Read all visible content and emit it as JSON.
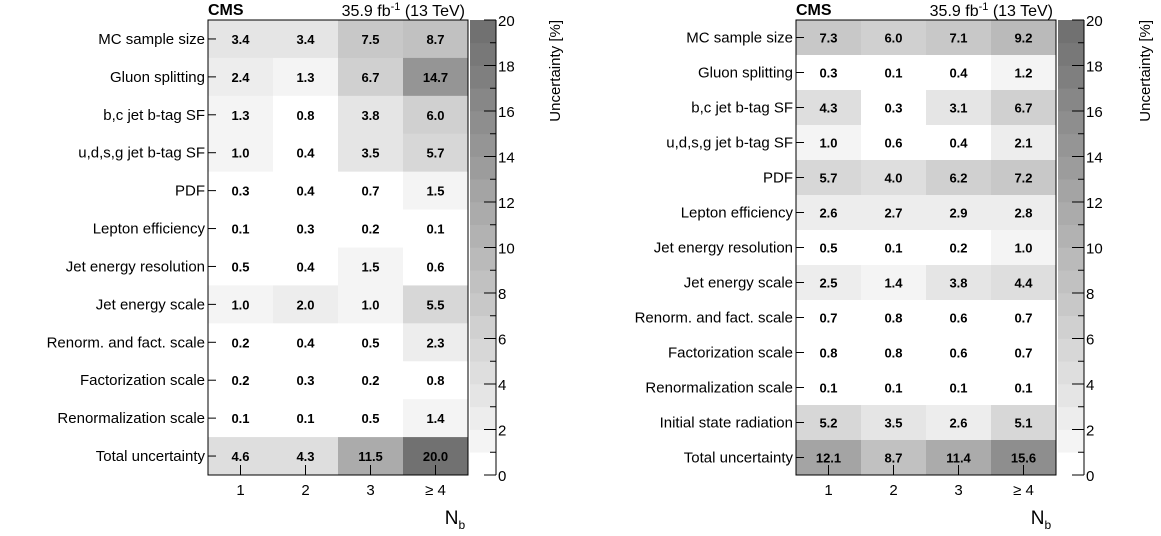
{
  "chart_data": [
    {
      "type": "heatmap",
      "experiment": "CMS",
      "lumi": "35.9 fb",
      "lumi_sup": "-1",
      "energy": "(13 TeV)",
      "xlabel": "N",
      "xlabel_sub": "b",
      "x_categories": [
        "1",
        "2",
        "3",
        "≥ 4"
      ],
      "colorbar_label": "Uncertainty [%]",
      "colorbar_range": [
        0,
        20
      ],
      "colorbar_ticks": [
        "0",
        "2",
        "4",
        "6",
        "8",
        "10",
        "12",
        "14",
        "16",
        "18",
        "20"
      ],
      "rows": [
        {
          "label": "MC sample size",
          "values": [
            3.4,
            3.4,
            7.5,
            8.7
          ],
          "display": [
            "3.4",
            "3.4",
            "7.5",
            "8.7"
          ]
        },
        {
          "label": "Gluon splitting",
          "values": [
            2.4,
            1.3,
            6.7,
            14.7
          ],
          "display": [
            "2.4",
            "1.3",
            "6.7",
            "14.7"
          ]
        },
        {
          "label": "b,c jet b-tag SF",
          "values": [
            1.3,
            0.8,
            3.8,
            6.0
          ],
          "display": [
            "1.3",
            "0.8",
            "3.8",
            "6.0"
          ]
        },
        {
          "label": "u,d,s,g jet b-tag SF",
          "values": [
            1.0,
            0.4,
            3.5,
            5.7
          ],
          "display": [
            "1.0",
            "0.4",
            "3.5",
            "5.7"
          ]
        },
        {
          "label": "PDF",
          "values": [
            0.3,
            0.4,
            0.7,
            1.5
          ],
          "display": [
            "0.3",
            "0.4",
            "0.7",
            "1.5"
          ]
        },
        {
          "label": "Lepton efficiency",
          "values": [
            0.1,
            0.3,
            0.2,
            0.1
          ],
          "display": [
            "0.1",
            "0.3",
            "0.2",
            "0.1"
          ]
        },
        {
          "label": "Jet energy resolution",
          "values": [
            0.5,
            0.4,
            1.5,
            0.6
          ],
          "display": [
            "0.5",
            "0.4",
            "1.5",
            "0.6"
          ]
        },
        {
          "label": "Jet energy scale",
          "values": [
            1.0,
            2.0,
            1.0,
            5.5
          ],
          "display": [
            "1.0",
            "2.0",
            "1.0",
            "5.5"
          ]
        },
        {
          "label": "Renorm. and fact. scale",
          "values": [
            0.2,
            0.4,
            0.5,
            2.3
          ],
          "display": [
            "0.2",
            "0.4",
            "0.5",
            "2.3"
          ]
        },
        {
          "label": "Factorization scale",
          "values": [
            0.2,
            0.3,
            0.2,
            0.8
          ],
          "display": [
            "0.2",
            "0.3",
            "0.2",
            "0.8"
          ]
        },
        {
          "label": "Renormalization scale",
          "values": [
            0.1,
            0.1,
            0.5,
            1.4
          ],
          "display": [
            "0.1",
            "0.1",
            "0.5",
            "1.4"
          ]
        },
        {
          "label": "Total uncertainty",
          "values": [
            4.6,
            4.3,
            11.5,
            20.0
          ],
          "display": [
            "4.6",
            "4.3",
            "11.5",
            "20.0"
          ]
        }
      ]
    },
    {
      "type": "heatmap",
      "experiment": "CMS",
      "lumi": "35.9 fb",
      "lumi_sup": "-1",
      "energy": "(13 TeV)",
      "xlabel": "N",
      "xlabel_sub": "b",
      "x_categories": [
        "1",
        "2",
        "3",
        "≥ 4"
      ],
      "colorbar_label": "Uncertainty [%]",
      "colorbar_range": [
        0,
        20
      ],
      "colorbar_ticks": [
        "0",
        "2",
        "4",
        "6",
        "8",
        "10",
        "12",
        "14",
        "16",
        "18",
        "20"
      ],
      "rows": [
        {
          "label": "MC sample size",
          "values": [
            7.3,
            6.0,
            7.1,
            9.2
          ],
          "display": [
            "7.3",
            "6.0",
            "7.1",
            "9.2"
          ]
        },
        {
          "label": "Gluon splitting",
          "values": [
            0.3,
            0.1,
            0.4,
            1.2
          ],
          "display": [
            "0.3",
            "0.1",
            "0.4",
            "1.2"
          ]
        },
        {
          "label": "b,c jet b-tag SF",
          "values": [
            4.3,
            0.3,
            3.1,
            6.7
          ],
          "display": [
            "4.3",
            "0.3",
            "3.1",
            "6.7"
          ]
        },
        {
          "label": "u,d,s,g jet b-tag SF",
          "values": [
            1.0,
            0.6,
            0.4,
            2.1
          ],
          "display": [
            "1.0",
            "0.6",
            "0.4",
            "2.1"
          ]
        },
        {
          "label": "PDF",
          "values": [
            5.7,
            4.0,
            6.2,
            7.2
          ],
          "display": [
            "5.7",
            "4.0",
            "6.2",
            "7.2"
          ]
        },
        {
          "label": "Lepton efficiency",
          "values": [
            2.6,
            2.7,
            2.9,
            2.8
          ],
          "display": [
            "2.6",
            "2.7",
            "2.9",
            "2.8"
          ]
        },
        {
          "label": "Jet energy resolution",
          "values": [
            0.5,
            0.1,
            0.2,
            1.0
          ],
          "display": [
            "0.5",
            "0.1",
            "0.2",
            "1.0"
          ]
        },
        {
          "label": "Jet energy scale",
          "values": [
            2.5,
            1.4,
            3.8,
            4.4
          ],
          "display": [
            "2.5",
            "1.4",
            "3.8",
            "4.4"
          ]
        },
        {
          "label": "Renorm. and fact. scale",
          "values": [
            0.7,
            0.8,
            0.6,
            0.7
          ],
          "display": [
            "0.7",
            "0.8",
            "0.6",
            "0.7"
          ]
        },
        {
          "label": "Factorization scale",
          "values": [
            0.8,
            0.8,
            0.6,
            0.7
          ],
          "display": [
            "0.8",
            "0.8",
            "0.6",
            "0.7"
          ]
        },
        {
          "label": "Renormalization scale",
          "values": [
            0.1,
            0.1,
            0.1,
            0.1
          ],
          "display": [
            "0.1",
            "0.1",
            "0.1",
            "0.1"
          ]
        },
        {
          "label": "Initial state radiation",
          "values": [
            5.2,
            3.5,
            2.6,
            5.1
          ],
          "display": [
            "5.2",
            "3.5",
            "2.6",
            "5.1"
          ]
        },
        {
          "label": "Total uncertainty",
          "values": [
            12.1,
            8.7,
            11.4,
            15.6
          ],
          "display": [
            "12.1",
            "8.7",
            "11.4",
            "15.6"
          ]
        }
      ]
    }
  ]
}
